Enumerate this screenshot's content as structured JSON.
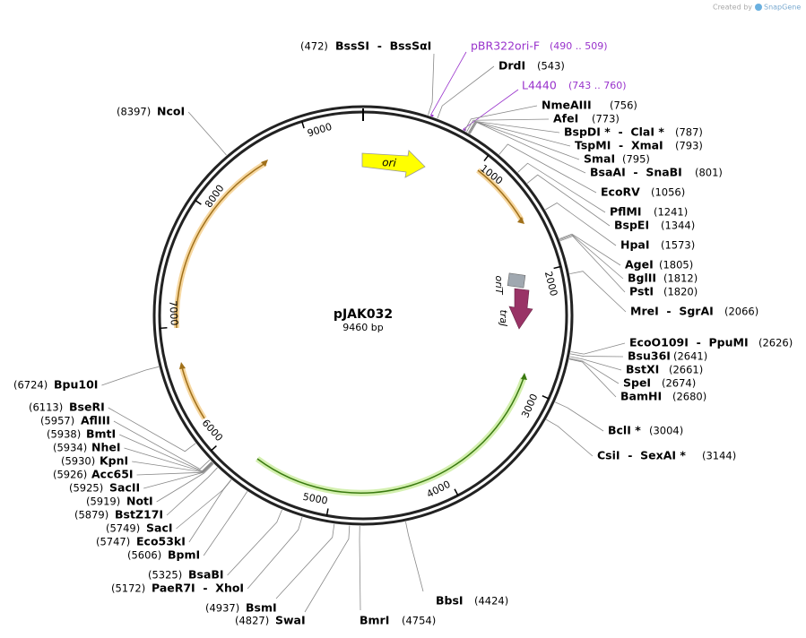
{
  "credit": {
    "prefix": "Created by",
    "brand": "SnapGene"
  },
  "plasmid": {
    "name": "pJAK032",
    "length": "9460 bp"
  },
  "ring_ticks": [
    1000,
    2000,
    3000,
    4000,
    5000,
    6000,
    7000,
    8000,
    9000
  ],
  "features": [
    {
      "label": "ori"
    },
    {
      "label": "oriT"
    },
    {
      "label": "traJ"
    }
  ],
  "primers": [
    {
      "name": "pBR322ori-F",
      "range": "(490 .. 509)"
    },
    {
      "name": "L4440",
      "range": "(743 .. 760)"
    }
  ],
  "sites": [
    {
      "name": "BssSI  -  BssSαI",
      "position": "(472)"
    },
    {
      "name": "DrdI",
      "position": "(543)"
    },
    {
      "name": "NmeAIII",
      "position": "(756)"
    },
    {
      "name": "AfeI",
      "position": "(773)"
    },
    {
      "name": "BspDI *  -  ClaI *",
      "position": "(787)"
    },
    {
      "name": "TspMI  -  XmaI",
      "position": "(793)"
    },
    {
      "name": "SmaI",
      "position": "(795)"
    },
    {
      "name": "BsaAI  -  SnaBI",
      "position": "(801)"
    },
    {
      "name": "EcoRV",
      "position": "(1056)"
    },
    {
      "name": "PflMI",
      "position": "(1241)"
    },
    {
      "name": "BspEI",
      "position": "(1344)"
    },
    {
      "name": "HpaI",
      "position": "(1573)"
    },
    {
      "name": "AgeI",
      "position": "(1805)"
    },
    {
      "name": "BglII",
      "position": "(1812)"
    },
    {
      "name": "PstI",
      "position": "(1820)"
    },
    {
      "name": "MreI  -  SgrAI",
      "position": "(2066)"
    },
    {
      "name": "EcoO109I  -  PpuMI",
      "position": "(2626)"
    },
    {
      "name": "Bsu36I",
      "position": "(2641)"
    },
    {
      "name": "BstXI",
      "position": "(2661)"
    },
    {
      "name": "SpeI",
      "position": "(2674)"
    },
    {
      "name": "BamHI",
      "position": "(2680)"
    },
    {
      "name": "BclI *",
      "position": "(3004)"
    },
    {
      "name": "CsiI  -  SexAI *",
      "position": "(3144)"
    },
    {
      "name": "BbsI",
      "position": "(4424)"
    },
    {
      "name": "BmrI",
      "position": "(4754)"
    },
    {
      "name": "SwaI",
      "position": "(4827)"
    },
    {
      "name": "BsmI",
      "position": "(4937)"
    },
    {
      "name": "PaeR7I  -  XhoI",
      "position": "(5172)"
    },
    {
      "name": "BsaBI",
      "position": "(5325)"
    },
    {
      "name": "BpmI",
      "position": "(5606)"
    },
    {
      "name": "Eco53kI",
      "position": "(5747)"
    },
    {
      "name": "SacI",
      "position": "(5749)"
    },
    {
      "name": "BstZ17I",
      "position": "(5879)"
    },
    {
      "name": "NotI",
      "position": "(5919)"
    },
    {
      "name": "SacII",
      "position": "(5925)"
    },
    {
      "name": "Acc65I",
      "position": "(5926)"
    },
    {
      "name": "KpnI",
      "position": "(5930)"
    },
    {
      "name": "NheI",
      "position": "(5934)"
    },
    {
      "name": "BmtI",
      "position": "(5938)"
    },
    {
      "name": "AflIII",
      "position": "(5957)"
    },
    {
      "name": "BseRI",
      "position": "(6113)"
    },
    {
      "name": "Bpu10I",
      "position": "(6724)"
    },
    {
      "name": "NcoI",
      "position": "(8397)"
    }
  ]
}
